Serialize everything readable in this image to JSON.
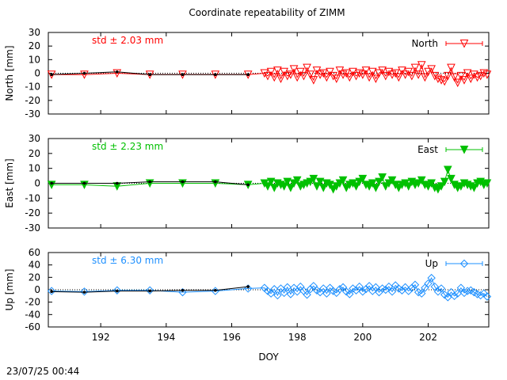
{
  "title": "Coordinate repeatability of ZIMM",
  "footer_timestamp": "23/07/25 00:44",
  "chart_data": [
    {
      "type": "scatter",
      "ylabel": "North [mm]",
      "ylim": [
        -30,
        30
      ],
      "yticks": [
        "30",
        "20",
        "10",
        "0",
        "-10",
        "-20",
        "-30"
      ],
      "ytick_values": [
        30,
        20,
        10,
        0,
        -10,
        -20,
        -30
      ],
      "xlim": [
        190.4,
        203.85
      ],
      "grid": false,
      "legend_position": "top-right",
      "annotation": "std ± 2.03 mm",
      "color": "#ff0000",
      "marker": "triangle-down-open",
      "series": [
        {
          "name": "North",
          "x": [
            190.5,
            191.5,
            192.5,
            193.5,
            194.5,
            195.5,
            196.5,
            197,
            197.1,
            197.2,
            197.3,
            197.4,
            197.5,
            197.6,
            197.7,
            197.8,
            197.9,
            198,
            198.1,
            198.2,
            198.3,
            198.4,
            198.5,
            198.6,
            198.7,
            198.8,
            198.9,
            199,
            199.1,
            199.2,
            199.3,
            199.4,
            199.5,
            199.6,
            199.7,
            199.8,
            199.9,
            200,
            200.1,
            200.2,
            200.3,
            200.4,
            200.5,
            200.6,
            200.7,
            200.8,
            200.9,
            201,
            201.1,
            201.2,
            201.3,
            201.4,
            201.5,
            201.6,
            201.7,
            201.8,
            201.9,
            202,
            202.1,
            202.2,
            202.3,
            202.4,
            202.5,
            202.6,
            202.7,
            202.8,
            202.9,
            203,
            203.1,
            203.2,
            203.3,
            203.4,
            203.5,
            203.6,
            203.7,
            203.8
          ],
          "y": [
            -1,
            -1,
            0,
            -1,
            -1,
            -1,
            -1,
            0,
            -2,
            1,
            -3,
            2,
            -4,
            1,
            -2,
            -1,
            3,
            -3,
            1,
            -2,
            4,
            -1,
            -5,
            2,
            -1,
            0,
            -3,
            1,
            -2,
            -4,
            2,
            -1,
            0,
            -3,
            1,
            -2,
            0,
            -1,
            2,
            -3,
            1,
            -4,
            0,
            2,
            -2,
            1,
            -1,
            0,
            -3,
            2,
            -1,
            1,
            -2,
            4,
            -1,
            6,
            -3,
            1,
            3,
            -2,
            -4,
            -5,
            -6,
            -2,
            4,
            -3,
            -7,
            -2,
            -5,
            0,
            -4,
            -1,
            -3,
            -2,
            0,
            -1
          ]
        },
        {
          "name": "",
          "x": [
            190.5,
            191.5,
            192.5,
            193.5,
            194.5,
            195.5,
            196.5
          ],
          "y": [
            -1,
            0,
            1,
            -1,
            -1,
            -1,
            -1
          ]
        }
      ]
    },
    {
      "type": "scatter",
      "ylabel": "East [mm]",
      "ylim": [
        -30,
        30
      ],
      "yticks": [
        "30",
        "20",
        "10",
        "0",
        "-10",
        "-20",
        "-30"
      ],
      "ytick_values": [
        30,
        20,
        10,
        0,
        -10,
        -20,
        -30
      ],
      "xlim": [
        190.4,
        203.85
      ],
      "grid": false,
      "legend_position": "top-right",
      "annotation": "std ± 2.23 mm",
      "color": "#00c000",
      "marker": "triangle-down-filled",
      "series": [
        {
          "name": "East",
          "x": [
            190.5,
            191.5,
            192.5,
            193.5,
            194.5,
            195.5,
            196.5,
            197,
            197.1,
            197.2,
            197.3,
            197.4,
            197.5,
            197.6,
            197.7,
            197.8,
            197.9,
            198,
            198.1,
            198.2,
            198.3,
            198.4,
            198.5,
            198.6,
            198.7,
            198.8,
            198.9,
            199,
            199.1,
            199.2,
            199.3,
            199.4,
            199.5,
            199.6,
            199.7,
            199.8,
            199.9,
            200,
            200.1,
            200.2,
            200.3,
            200.4,
            200.5,
            200.6,
            200.7,
            200.8,
            200.9,
            201,
            201.1,
            201.2,
            201.3,
            201.4,
            201.5,
            201.6,
            201.7,
            201.8,
            201.9,
            202,
            202.1,
            202.2,
            202.3,
            202.4,
            202.5,
            202.6,
            202.7,
            202.8,
            202.9,
            203,
            203.1,
            203.2,
            203.3,
            203.4,
            203.5,
            203.6,
            203.7,
            203.8
          ],
          "y": [
            -1,
            -1,
            -2,
            0,
            0,
            0,
            -1,
            0,
            -2,
            1,
            -3,
            0,
            -1,
            -2,
            1,
            -3,
            0,
            2,
            -2,
            -1,
            0,
            1,
            3,
            -2,
            1,
            -3,
            0,
            -1,
            -4,
            -2,
            0,
            2,
            -3,
            -1,
            0,
            -2,
            1,
            3,
            -1,
            -2,
            0,
            -3,
            1,
            4,
            -2,
            0,
            2,
            -1,
            -3,
            -1,
            0,
            -2,
            1,
            -1,
            0,
            2,
            -1,
            -2,
            0,
            -3,
            -4,
            -2,
            1,
            9,
            3,
            -1,
            -3,
            -2,
            0,
            -1,
            -2,
            -3,
            0,
            1,
            -1,
            0
          ]
        },
        {
          "name": "",
          "x": [
            190.5,
            191.5,
            192.5,
            193.5,
            194.5,
            195.5,
            196.5
          ],
          "y": [
            0,
            0,
            0,
            1,
            1,
            1,
            -1
          ]
        }
      ]
    },
    {
      "type": "scatter",
      "ylabel": "Up [mm]",
      "ylim": [
        -60,
        60
      ],
      "yticks": [
        "60",
        "40",
        "20",
        "0",
        "-20",
        "-40",
        "-60"
      ],
      "ytick_values": [
        60,
        40,
        20,
        0,
        -20,
        -40,
        -60
      ],
      "xlim": [
        190.4,
        203.85
      ],
      "xticks": [
        192,
        194,
        196,
        198,
        200,
        202
      ],
      "xlabel": "DOY",
      "grid": false,
      "legend_position": "top-right",
      "annotation": "std ± 6.30 mm",
      "color": "#1e90ff",
      "marker": "diamond-open",
      "series": [
        {
          "name": "Up",
          "x": [
            190.5,
            191.5,
            192.5,
            193.5,
            194.5,
            195.5,
            196.5,
            197,
            197.1,
            197.2,
            197.3,
            197.4,
            197.5,
            197.6,
            197.7,
            197.8,
            197.9,
            198,
            198.1,
            198.2,
            198.3,
            198.4,
            198.5,
            198.6,
            198.7,
            198.8,
            198.9,
            199,
            199.1,
            199.2,
            199.3,
            199.4,
            199.5,
            199.6,
            199.7,
            199.8,
            199.9,
            200,
            200.1,
            200.2,
            200.3,
            200.4,
            200.5,
            200.6,
            200.7,
            200.8,
            200.9,
            201,
            201.1,
            201.2,
            201.3,
            201.4,
            201.5,
            201.6,
            201.7,
            201.8,
            201.9,
            202,
            202.1,
            202.2,
            202.3,
            202.4,
            202.5,
            202.6,
            202.7,
            202.8,
            202.9,
            203,
            203.1,
            203.2,
            203.3,
            203.4,
            203.5,
            203.6,
            203.7,
            203.8
          ],
          "y": [
            -2,
            -3,
            -1,
            -1,
            -4,
            -2,
            2,
            3,
            -2,
            -6,
            1,
            -9,
            2,
            -5,
            4,
            -7,
            3,
            -3,
            5,
            -2,
            -8,
            1,
            6,
            -1,
            -4,
            2,
            -6,
            3,
            -2,
            -5,
            1,
            4,
            -3,
            -7,
            2,
            -1,
            5,
            -3,
            1,
            6,
            -2,
            4,
            -4,
            2,
            0,
            5,
            -3,
            7,
            2,
            -1,
            4,
            -2,
            3,
            8,
            -4,
            -6,
            3,
            10,
            19,
            5,
            -3,
            2,
            -8,
            -12,
            -4,
            -10,
            -6,
            3,
            -5,
            -2,
            -1,
            -4,
            -7,
            -9,
            -6,
            -11
          ]
        },
        {
          "name": "",
          "x": [
            190.5,
            191.5,
            192.5,
            193.5,
            194.5,
            195.5,
            196.5
          ],
          "y": [
            -3,
            -4,
            -2,
            -2,
            -1,
            -1,
            5
          ]
        }
      ]
    }
  ]
}
